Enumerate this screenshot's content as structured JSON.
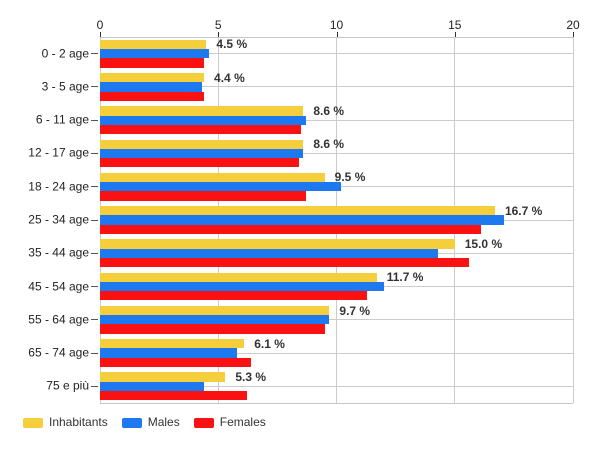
{
  "chart_data": {
    "type": "bar",
    "orientation": "horizontal",
    "title": "",
    "categories": [
      "0 - 2 age",
      "3 - 5 age",
      "6 - 11 age",
      "12 - 17 age",
      "18 - 24 age",
      "25 - 34 age",
      "35 - 44 age",
      "45 - 54 age",
      "55 - 64 age",
      "65 - 74 age",
      "75 e più"
    ],
    "series": [
      {
        "name": "Inhabitants",
        "color": "#F4CE3B",
        "values": [
          4.5,
          4.4,
          8.6,
          8.6,
          9.5,
          16.7,
          15.0,
          11.7,
          9.7,
          6.1,
          5.3
        ]
      },
      {
        "name": "Males",
        "color": "#1E78F0",
        "values": [
          4.6,
          4.3,
          8.7,
          8.6,
          10.2,
          17.1,
          14.3,
          12.0,
          9.7,
          5.8,
          4.4
        ]
      },
      {
        "name": "Females",
        "color": "#FA1111",
        "values": [
          4.4,
          4.4,
          8.5,
          8.4,
          8.7,
          16.1,
          15.6,
          11.3,
          9.5,
          6.4,
          6.2
        ]
      }
    ],
    "data_labels": [
      "4.5 %",
      "4.4 %",
      "8.6 %",
      "8.6 %",
      "9.5 %",
      "16.7 %",
      "15.0 %",
      "11.7 %",
      "9.7 %",
      "6.1 %",
      "5.3 %"
    ],
    "xlabel": "",
    "ylabel": "",
    "x_axis": {
      "position": "top",
      "min": 0,
      "max": 20,
      "ticks": [
        0,
        5,
        10,
        15,
        20
      ]
    },
    "grid": true,
    "legend_position": "bottom-left",
    "colors": {
      "background": "#FFFFFF",
      "gridline": "#CCCCCC",
      "axis_text": "#222222",
      "data_label_text": "#333333",
      "legend_text": "#333333"
    }
  }
}
